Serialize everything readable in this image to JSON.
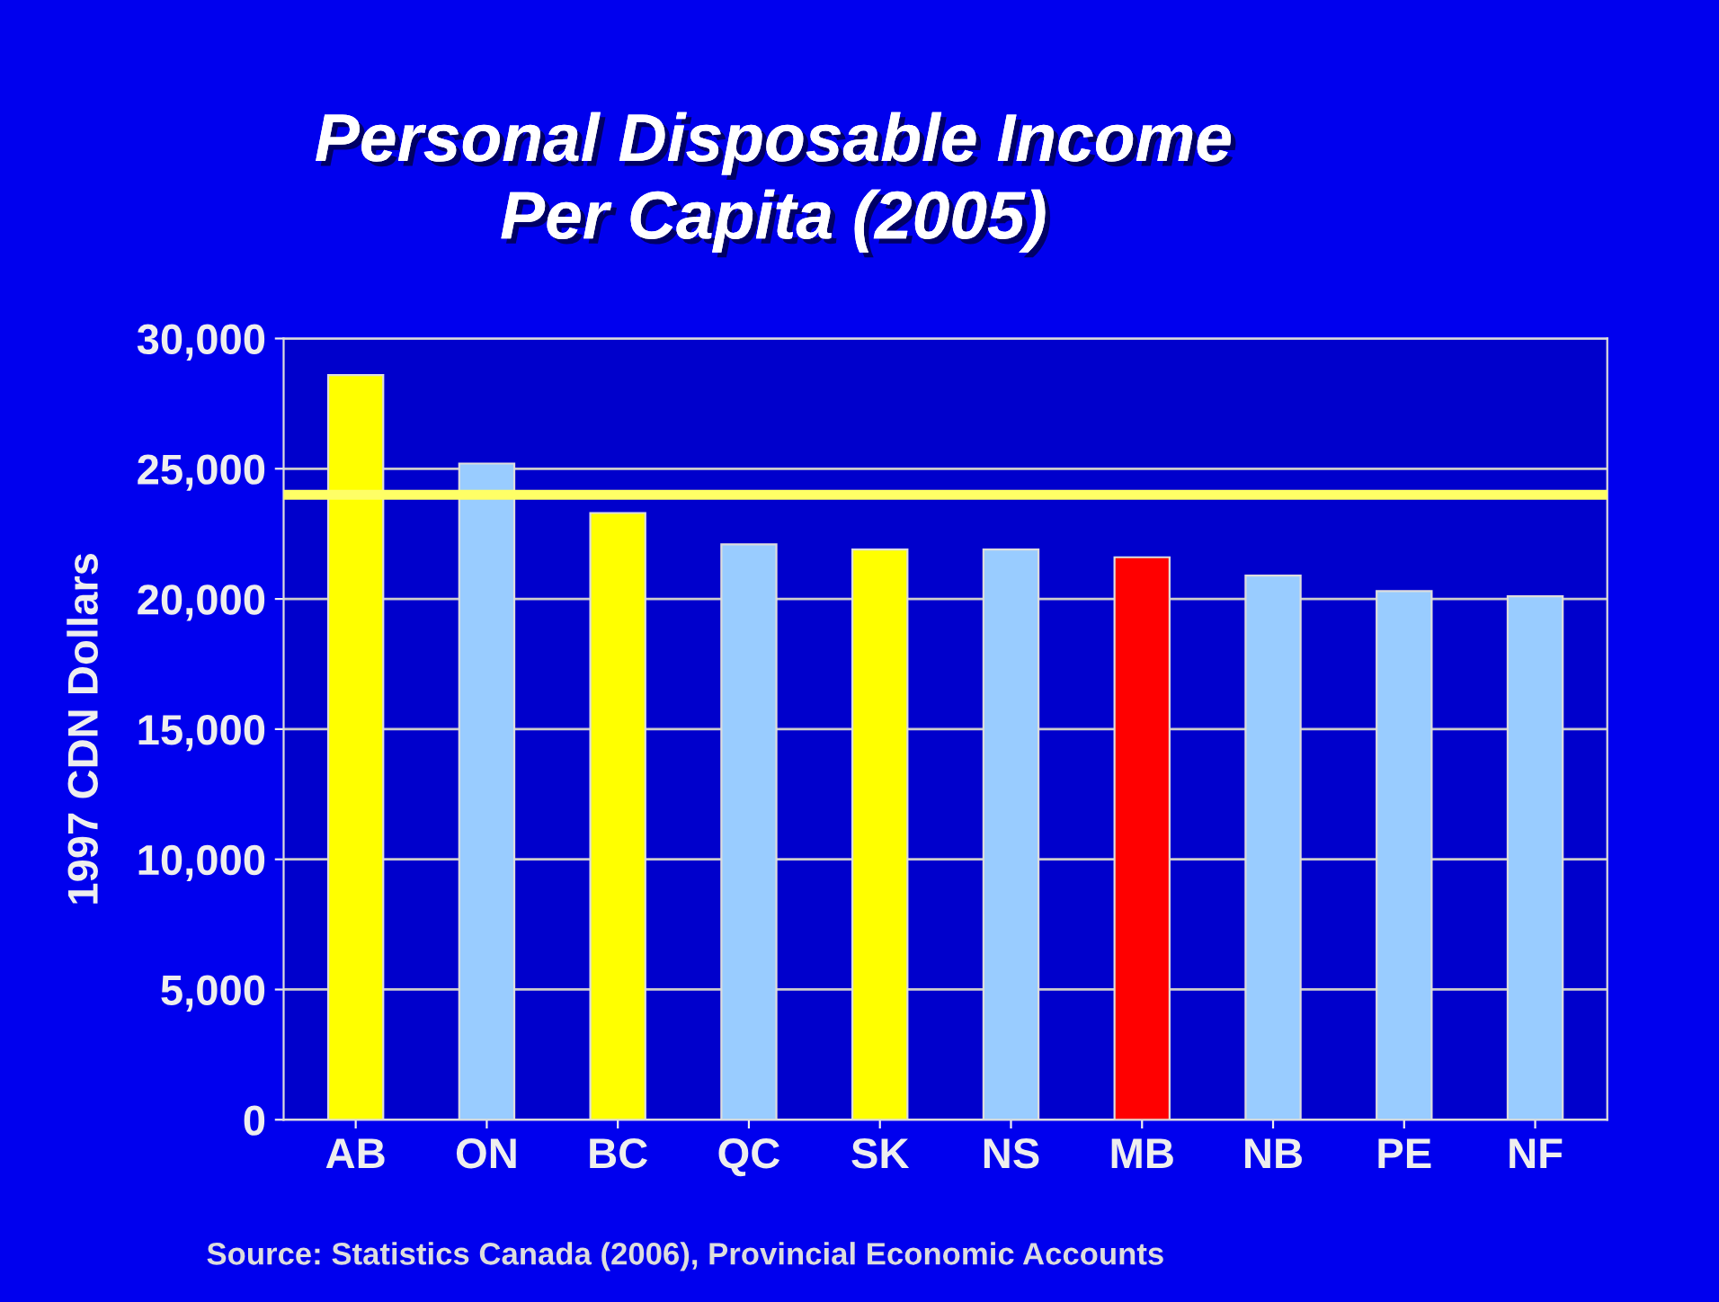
{
  "chart_data": {
    "type": "bar",
    "title": "Personal Disposable Income\nPer Capita (2005)",
    "ylabel": "1997 CDN Dollars",
    "categories": [
      "AB",
      "ON",
      "BC",
      "QC",
      "SK",
      "NS",
      "MB",
      "NB",
      "PE",
      "NF"
    ],
    "values": [
      28600,
      25200,
      23300,
      22100,
      21900,
      21900,
      21600,
      20900,
      20300,
      20100
    ],
    "colors": [
      "#ffff00",
      "#99ccff",
      "#ffff00",
      "#99ccff",
      "#ffff00",
      "#99ccff",
      "#ff0000",
      "#99ccff",
      "#99ccff",
      "#99ccff"
    ],
    "ylim": [
      0,
      30000
    ],
    "yticks": [
      {
        "value": 0,
        "label": "0"
      },
      {
        "value": 5000,
        "label": "5,000"
      },
      {
        "value": 10000,
        "label": "10,000"
      },
      {
        "value": 15000,
        "label": "15,000"
      },
      {
        "value": 20000,
        "label": "20,000"
      },
      {
        "value": 25000,
        "label": "25,000"
      },
      {
        "value": 30000,
        "label": "30,000"
      }
    ],
    "grid": "y",
    "ref_lines": [
      {
        "axis": "y",
        "value": 24000,
        "color": "#ffff66"
      }
    ],
    "annotations": [
      "Source: Statistics Canada (2006), Provincial Economic Accounts"
    ]
  }
}
